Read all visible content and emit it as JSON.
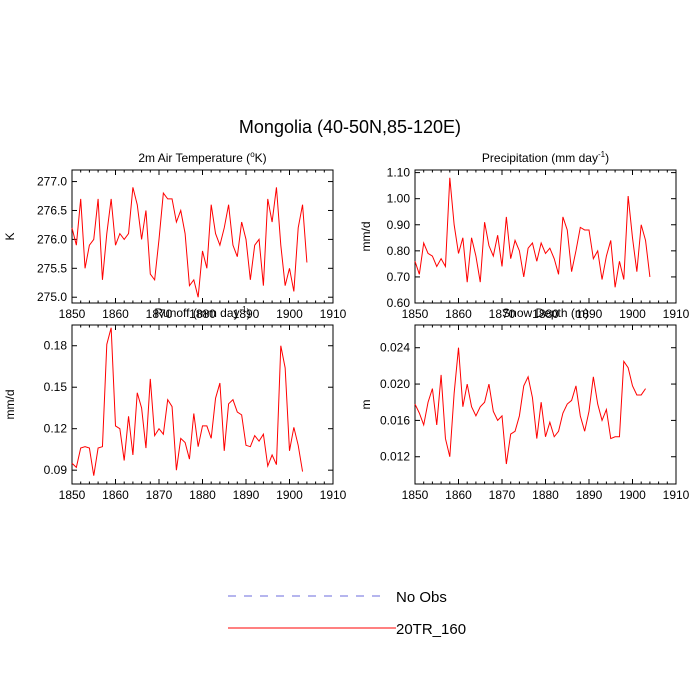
{
  "figure": {
    "title": "Mongolia (40-50N,85-120E)"
  },
  "legend": {
    "entries": [
      {
        "label": "No Obs",
        "color": "#6b6bdc",
        "style": "dashed"
      },
      {
        "label": "20TR_160",
        "color": "#ff0000",
        "style": "solid"
      }
    ]
  },
  "chart_data": [
    {
      "type": "line",
      "title": "2m Air Temperature (°K)",
      "title_main": "2m Air Temperature (",
      "title_sup": "o",
      "title_end": "K)",
      "ylabel": "K",
      "xlim": [
        1850,
        1910
      ],
      "ylim": [
        274.9,
        277.2
      ],
      "xticks": [
        1850,
        1860,
        1870,
        1880,
        1890,
        1900,
        1910
      ],
      "yticks": [
        275.0,
        275.5,
        276.0,
        276.5,
        277.0
      ],
      "ytick_labels": [
        "275.0",
        "275.5",
        "276.0",
        "276.5",
        "277.0"
      ],
      "series": [
        {
          "name": "20TR_160",
          "color": "#ff0000",
          "x_start": 1850,
          "values": [
            276.2,
            275.9,
            276.7,
            275.5,
            275.9,
            276.0,
            276.7,
            275.3,
            276.1,
            276.7,
            275.9,
            276.1,
            276.0,
            276.1,
            276.9,
            276.6,
            276.0,
            276.5,
            275.4,
            275.3,
            276.0,
            276.8,
            276.7,
            276.7,
            276.3,
            276.5,
            276.1,
            275.2,
            275.3,
            275.0,
            275.8,
            275.5,
            276.6,
            276.1,
            275.9,
            276.2,
            276.6,
            275.9,
            275.7,
            276.3,
            276.0,
            275.3,
            275.9,
            276.0,
            275.2,
            276.7,
            276.3,
            276.9,
            275.9,
            275.2,
            275.5,
            275.1,
            276.2,
            276.6,
            275.6
          ]
        }
      ]
    },
    {
      "type": "line",
      "title": "Precipitation (mm day-1)",
      "title_main": "Precipitation (mm day",
      "title_sup": "-1",
      "title_end": ")",
      "ylabel": "mm/d",
      "xlim": [
        1850,
        1910
      ],
      "ylim": [
        0.6,
        1.11
      ],
      "xticks": [
        1850,
        1860,
        1870,
        1880,
        1890,
        1900,
        1910
      ],
      "yticks": [
        0.6,
        0.7,
        0.8,
        0.9,
        1.0,
        1.1
      ],
      "ytick_labels": [
        "0.60",
        "0.70",
        "0.80",
        "0.90",
        "1.00",
        "1.10"
      ],
      "series": [
        {
          "name": "20TR_160",
          "color": "#ff0000",
          "x_start": 1850,
          "values": [
            0.76,
            0.71,
            0.83,
            0.79,
            0.78,
            0.74,
            0.77,
            0.74,
            1.08,
            0.9,
            0.79,
            0.85,
            0.68,
            0.85,
            0.78,
            0.68,
            0.91,
            0.82,
            0.78,
            0.86,
            0.74,
            0.93,
            0.77,
            0.84,
            0.8,
            0.7,
            0.81,
            0.83,
            0.76,
            0.83,
            0.79,
            0.81,
            0.77,
            0.71,
            0.93,
            0.88,
            0.72,
            0.8,
            0.89,
            0.88,
            0.88,
            0.77,
            0.8,
            0.69,
            0.78,
            0.84,
            0.66,
            0.76,
            0.69,
            1.01,
            0.85,
            0.72,
            0.9,
            0.84,
            0.7
          ]
        }
      ]
    },
    {
      "type": "line",
      "title": "Runoff (mm day-1)",
      "title_main": "Runoff (mm day",
      "title_sup": "-1",
      "title_end": ")",
      "ylabel": "mm/d",
      "xlim": [
        1850,
        1910
      ],
      "ylim": [
        0.08,
        0.195
      ],
      "xticks": [
        1850,
        1860,
        1870,
        1880,
        1890,
        1900,
        1910
      ],
      "yticks": [
        0.09,
        0.12,
        0.15,
        0.18
      ],
      "ytick_labels": [
        "0.09",
        "0.12",
        "0.15",
        "0.18"
      ],
      "series": [
        {
          "name": "20TR_160",
          "color": "#ff0000",
          "x_start": 1850,
          "values": [
            0.095,
            0.092,
            0.106,
            0.107,
            0.106,
            0.086,
            0.106,
            0.107,
            0.181,
            0.193,
            0.122,
            0.12,
            0.097,
            0.129,
            0.101,
            0.146,
            0.135,
            0.106,
            0.156,
            0.115,
            0.12,
            0.116,
            0.141,
            0.136,
            0.09,
            0.113,
            0.11,
            0.098,
            0.131,
            0.107,
            0.122,
            0.122,
            0.113,
            0.142,
            0.153,
            0.104,
            0.138,
            0.141,
            0.132,
            0.13,
            0.108,
            0.107,
            0.115,
            0.111,
            0.116,
            0.093,
            0.101,
            0.094,
            0.18,
            0.164,
            0.104,
            0.121,
            0.108,
            0.089
          ]
        }
      ]
    },
    {
      "type": "line",
      "title": "Snow Depth (m)",
      "title_main": "Snow Depth (m)",
      "title_sup": "",
      "title_end": "",
      "ylabel": "m",
      "xlim": [
        1850,
        1910
      ],
      "ylim": [
        0.009,
        0.0265
      ],
      "xticks": [
        1850,
        1860,
        1870,
        1880,
        1890,
        1900,
        1910
      ],
      "yticks": [
        0.012,
        0.016,
        0.02,
        0.024
      ],
      "ytick_labels": [
        "0.012",
        "0.016",
        "0.020",
        "0.024"
      ],
      "series": [
        {
          "name": "20TR_160",
          "color": "#ff0000",
          "x_start": 1850,
          "values": [
            0.0178,
            0.0168,
            0.0155,
            0.018,
            0.0195,
            0.0155,
            0.021,
            0.014,
            0.012,
            0.019,
            0.024,
            0.0175,
            0.02,
            0.0175,
            0.0165,
            0.0175,
            0.018,
            0.02,
            0.017,
            0.016,
            0.0165,
            0.0112,
            0.0145,
            0.0148,
            0.0165,
            0.0198,
            0.0208,
            0.0185,
            0.014,
            0.018,
            0.0142,
            0.0158,
            0.0142,
            0.0148,
            0.0168,
            0.0178,
            0.0182,
            0.0198,
            0.0165,
            0.0148,
            0.017,
            0.0208,
            0.0178,
            0.016,
            0.0172,
            0.014,
            0.0142,
            0.0142,
            0.0225,
            0.0218,
            0.0198,
            0.0188,
            0.0188,
            0.0195
          ]
        }
      ]
    }
  ]
}
